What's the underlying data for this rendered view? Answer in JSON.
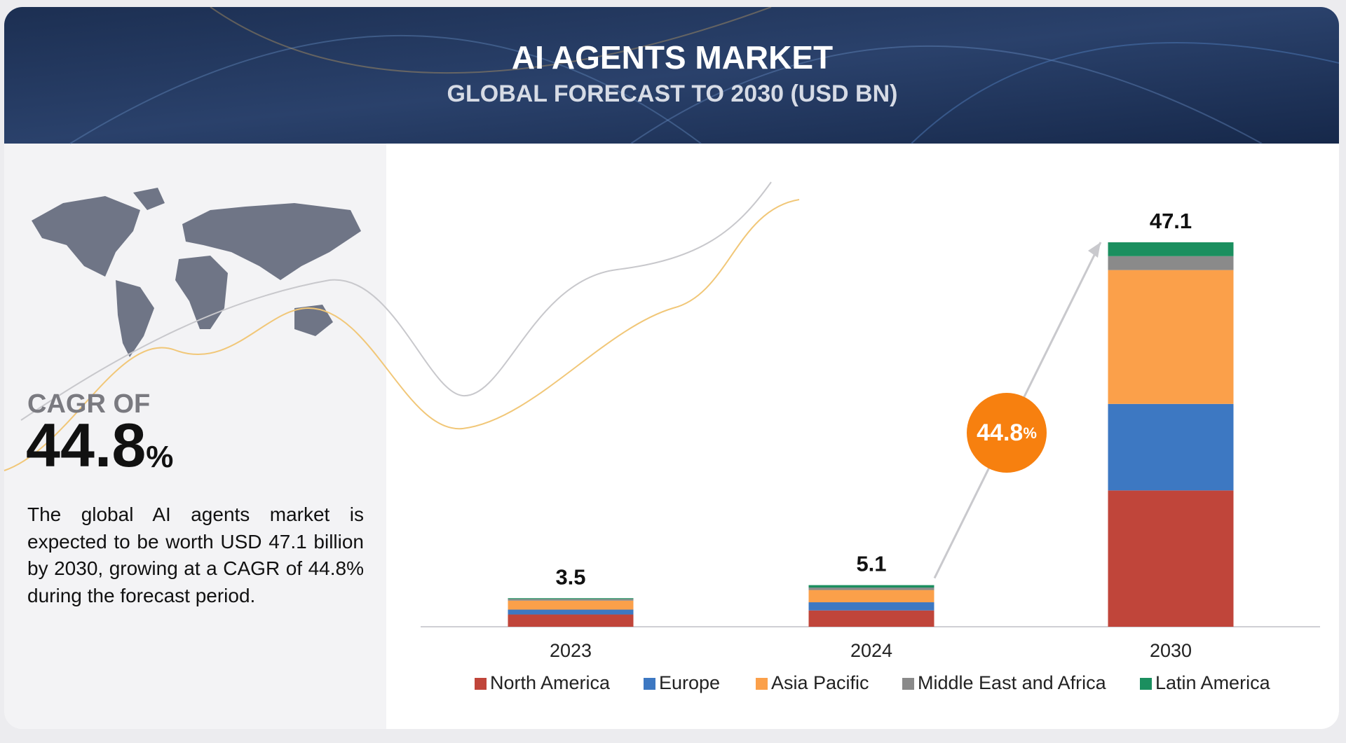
{
  "title": "AI AGENTS MARKET",
  "subtitle": "GLOBAL FORECAST TO 2030 (USD BN)",
  "cagr_label": "CAGR OF",
  "description": "The global AI agents market is expected to be worth USD 47.1 billion by 2030, growing at a CAGR of 44.8% during the forecast period.",
  "chart_data": {
    "type": "stacked_bar",
    "categories": [
      "2023",
      "2024",
      "2030"
    ],
    "totals": [
      3.5,
      5.1,
      47.1
    ],
    "cagr_value": 44.8,
    "cagr_unit": "%",
    "series": [
      {
        "name": "North America",
        "color": "#c0453a",
        "values": [
          1.5,
          2.0,
          16.7
        ]
      },
      {
        "name": "Europe",
        "color": "#3d78c2",
        "values": [
          0.6,
          1.0,
          10.6
        ]
      },
      {
        "name": "Asia Pacific",
        "color": "#fba04a",
        "values": [
          1.1,
          1.5,
          16.4
        ]
      },
      {
        "name": "Middle East and Africa",
        "color": "#8a8a8a",
        "values": [
          0.2,
          0.3,
          1.7
        ]
      },
      {
        "name": "Latin America",
        "color": "#1b8f5f",
        "values": [
          0.1,
          0.3,
          1.7
        ]
      }
    ],
    "legend": "bottom"
  }
}
